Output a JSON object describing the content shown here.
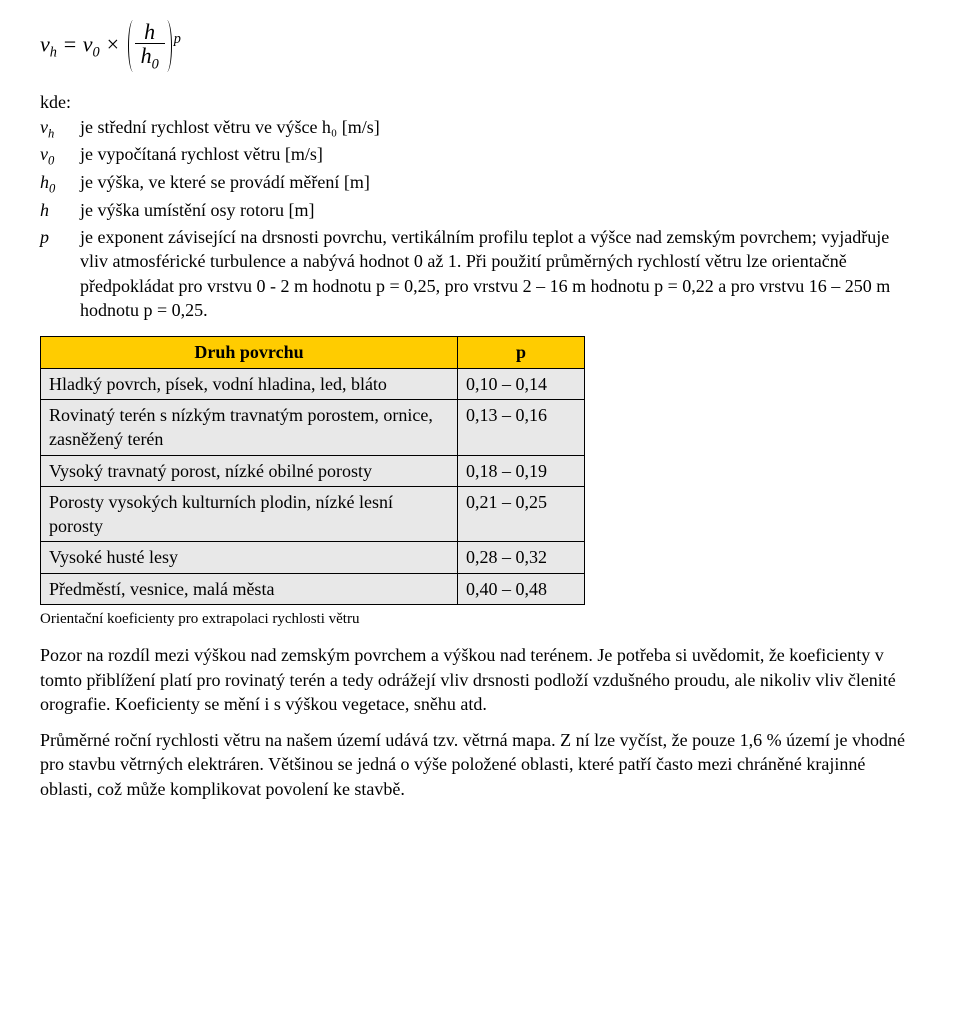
{
  "formula": {
    "lhs_var": "v",
    "lhs_sub": "h",
    "eq": "=",
    "rhs_var": "v",
    "rhs_sub": "0",
    "mult": "×",
    "frac_num": "h",
    "frac_den_var": "h",
    "frac_den_sub": "0",
    "exp": "p"
  },
  "kde_label": "kde:",
  "defs": [
    {
      "sym": "v",
      "sub": "h",
      "txt": "je střední rychlost větru ve výšce h₀ [m/s]"
    },
    {
      "sym": "v",
      "sub": "0",
      "txt": "je vypočítaná rychlost větru [m/s]"
    },
    {
      "sym": "h",
      "sub": "0",
      "txt": "je výška, ve které se provádí měření [m]"
    },
    {
      "sym": "h",
      "sub": "",
      "txt": "je výška umístění osy rotoru [m]"
    },
    {
      "sym": "p",
      "sub": "",
      "txt": "je exponent závisející na drsnosti povrchu, vertikálním profilu teplot a výšce nad zemským povrchem; vyjadřuje vliv atmosférické turbulence a nabývá hodnot 0 až 1. Při použití průměrných rychlostí větru lze orientačně předpokládat pro vrstvu 0 - 2 m hodnotu p = 0,25, pro vrstvu 2 – 16 m hodnotu p = 0,22 a pro vrstvu 16 – 250 m hodnotu p = 0,25."
    }
  ],
  "table": {
    "header_col1": "Druh povrchu",
    "header_col2": "p",
    "rows": [
      {
        "c1": "Hladký povrch, písek, vodní hladina, led, bláto",
        "c2": "0,10 – 0,14"
      },
      {
        "c1": "Rovinatý terén s nízkým travnatým porostem, ornice, zasněžený terén",
        "c2": "0,13 – 0,16"
      },
      {
        "c1": "Vysoký travnatý porost, nízké obilné porosty",
        "c2": "0,18 – 0,19"
      },
      {
        "c1": "Porosty vysokých kulturních plodin, nízké lesní porosty",
        "c2": "0,21 – 0,25"
      },
      {
        "c1": "Vysoké husté lesy",
        "c2": "0,28 – 0,32"
      },
      {
        "c1": "Předměstí, vesnice, malá města",
        "c2": "0,40 – 0,48"
      }
    ],
    "caption": "Orientační koeficienty pro extrapolaci rychlosti větru",
    "header_bg": "#ffcc00",
    "cell_bg": "#e8e8e8",
    "border_color": "#000000"
  },
  "paragraphs": {
    "p1": "Pozor na rozdíl mezi výškou nad zemským povrchem a výškou nad terénem. Je potřeba si uvědomit, že koeficienty v tomto přiblížení platí pro rovinatý terén a tedy odrážejí vliv drsnosti podloží vzdušného proudu, ale nikoliv vliv členité orografie. Koeficienty se mění i s výškou vegetace, sněhu atd.",
    "p2": "Průměrné roční rychlosti větru na našem území udává tzv. větrná mapa. Z ní lze vyčíst, že pouze 1,6 % území je vhodné pro stavbu větrných elektráren. Většinou se jedná o výše položené oblasti, které patří často mezi chráněné krajinné oblasti, což může komplikovat povolení ke stavbě."
  }
}
